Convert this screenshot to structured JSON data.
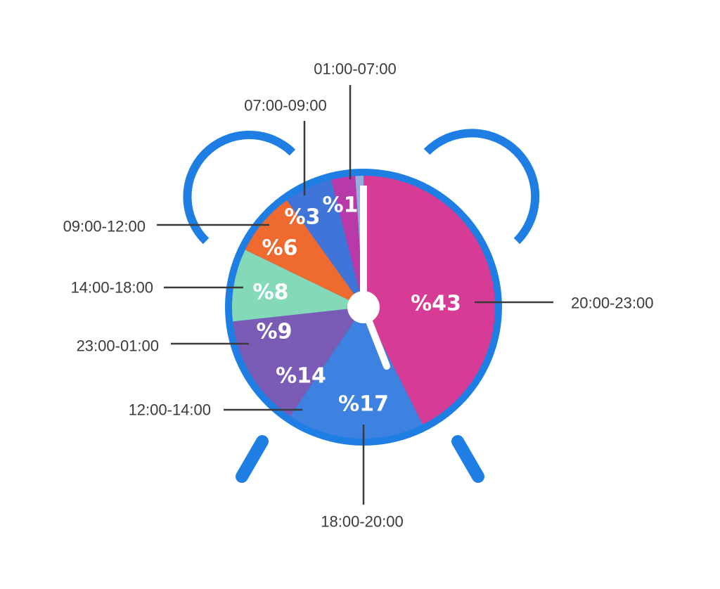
{
  "chart_data": {
    "type": "pie",
    "title": "",
    "slices": [
      {
        "name": "20:00-23:00",
        "value": 43,
        "label": "%43",
        "color": "#d63b96"
      },
      {
        "name": "18:00-20:00",
        "value": 17,
        "label": "%17",
        "color": "#3d82e1"
      },
      {
        "name": "12:00-14:00",
        "value": 14,
        "label": "%14",
        "color": "#7a5cb7"
      },
      {
        "name": "23:00-01:00",
        "value": 9,
        "label": "%9",
        "color": "#84d9b9"
      },
      {
        "name": "14:00-18:00",
        "value": 8,
        "label": "%8",
        "color": "#ee6a2e"
      },
      {
        "name": "09:00-12:00",
        "value": 6,
        "label": "%6",
        "color": "#3f74d8"
      },
      {
        "name": "07:00-09:00",
        "value": 3,
        "label": "%3",
        "color": "#b83aa8"
      },
      {
        "name": "01:00-07:00",
        "value": 1,
        "label": "%1",
        "color": "#95aee0"
      }
    ]
  },
  "colors": {
    "clock_frame": "#1e7ee3",
    "hands": "#ffffff",
    "leader_lines": "#3a3a3a"
  },
  "icons": {
    "clock": "alarm-clock-icon"
  }
}
